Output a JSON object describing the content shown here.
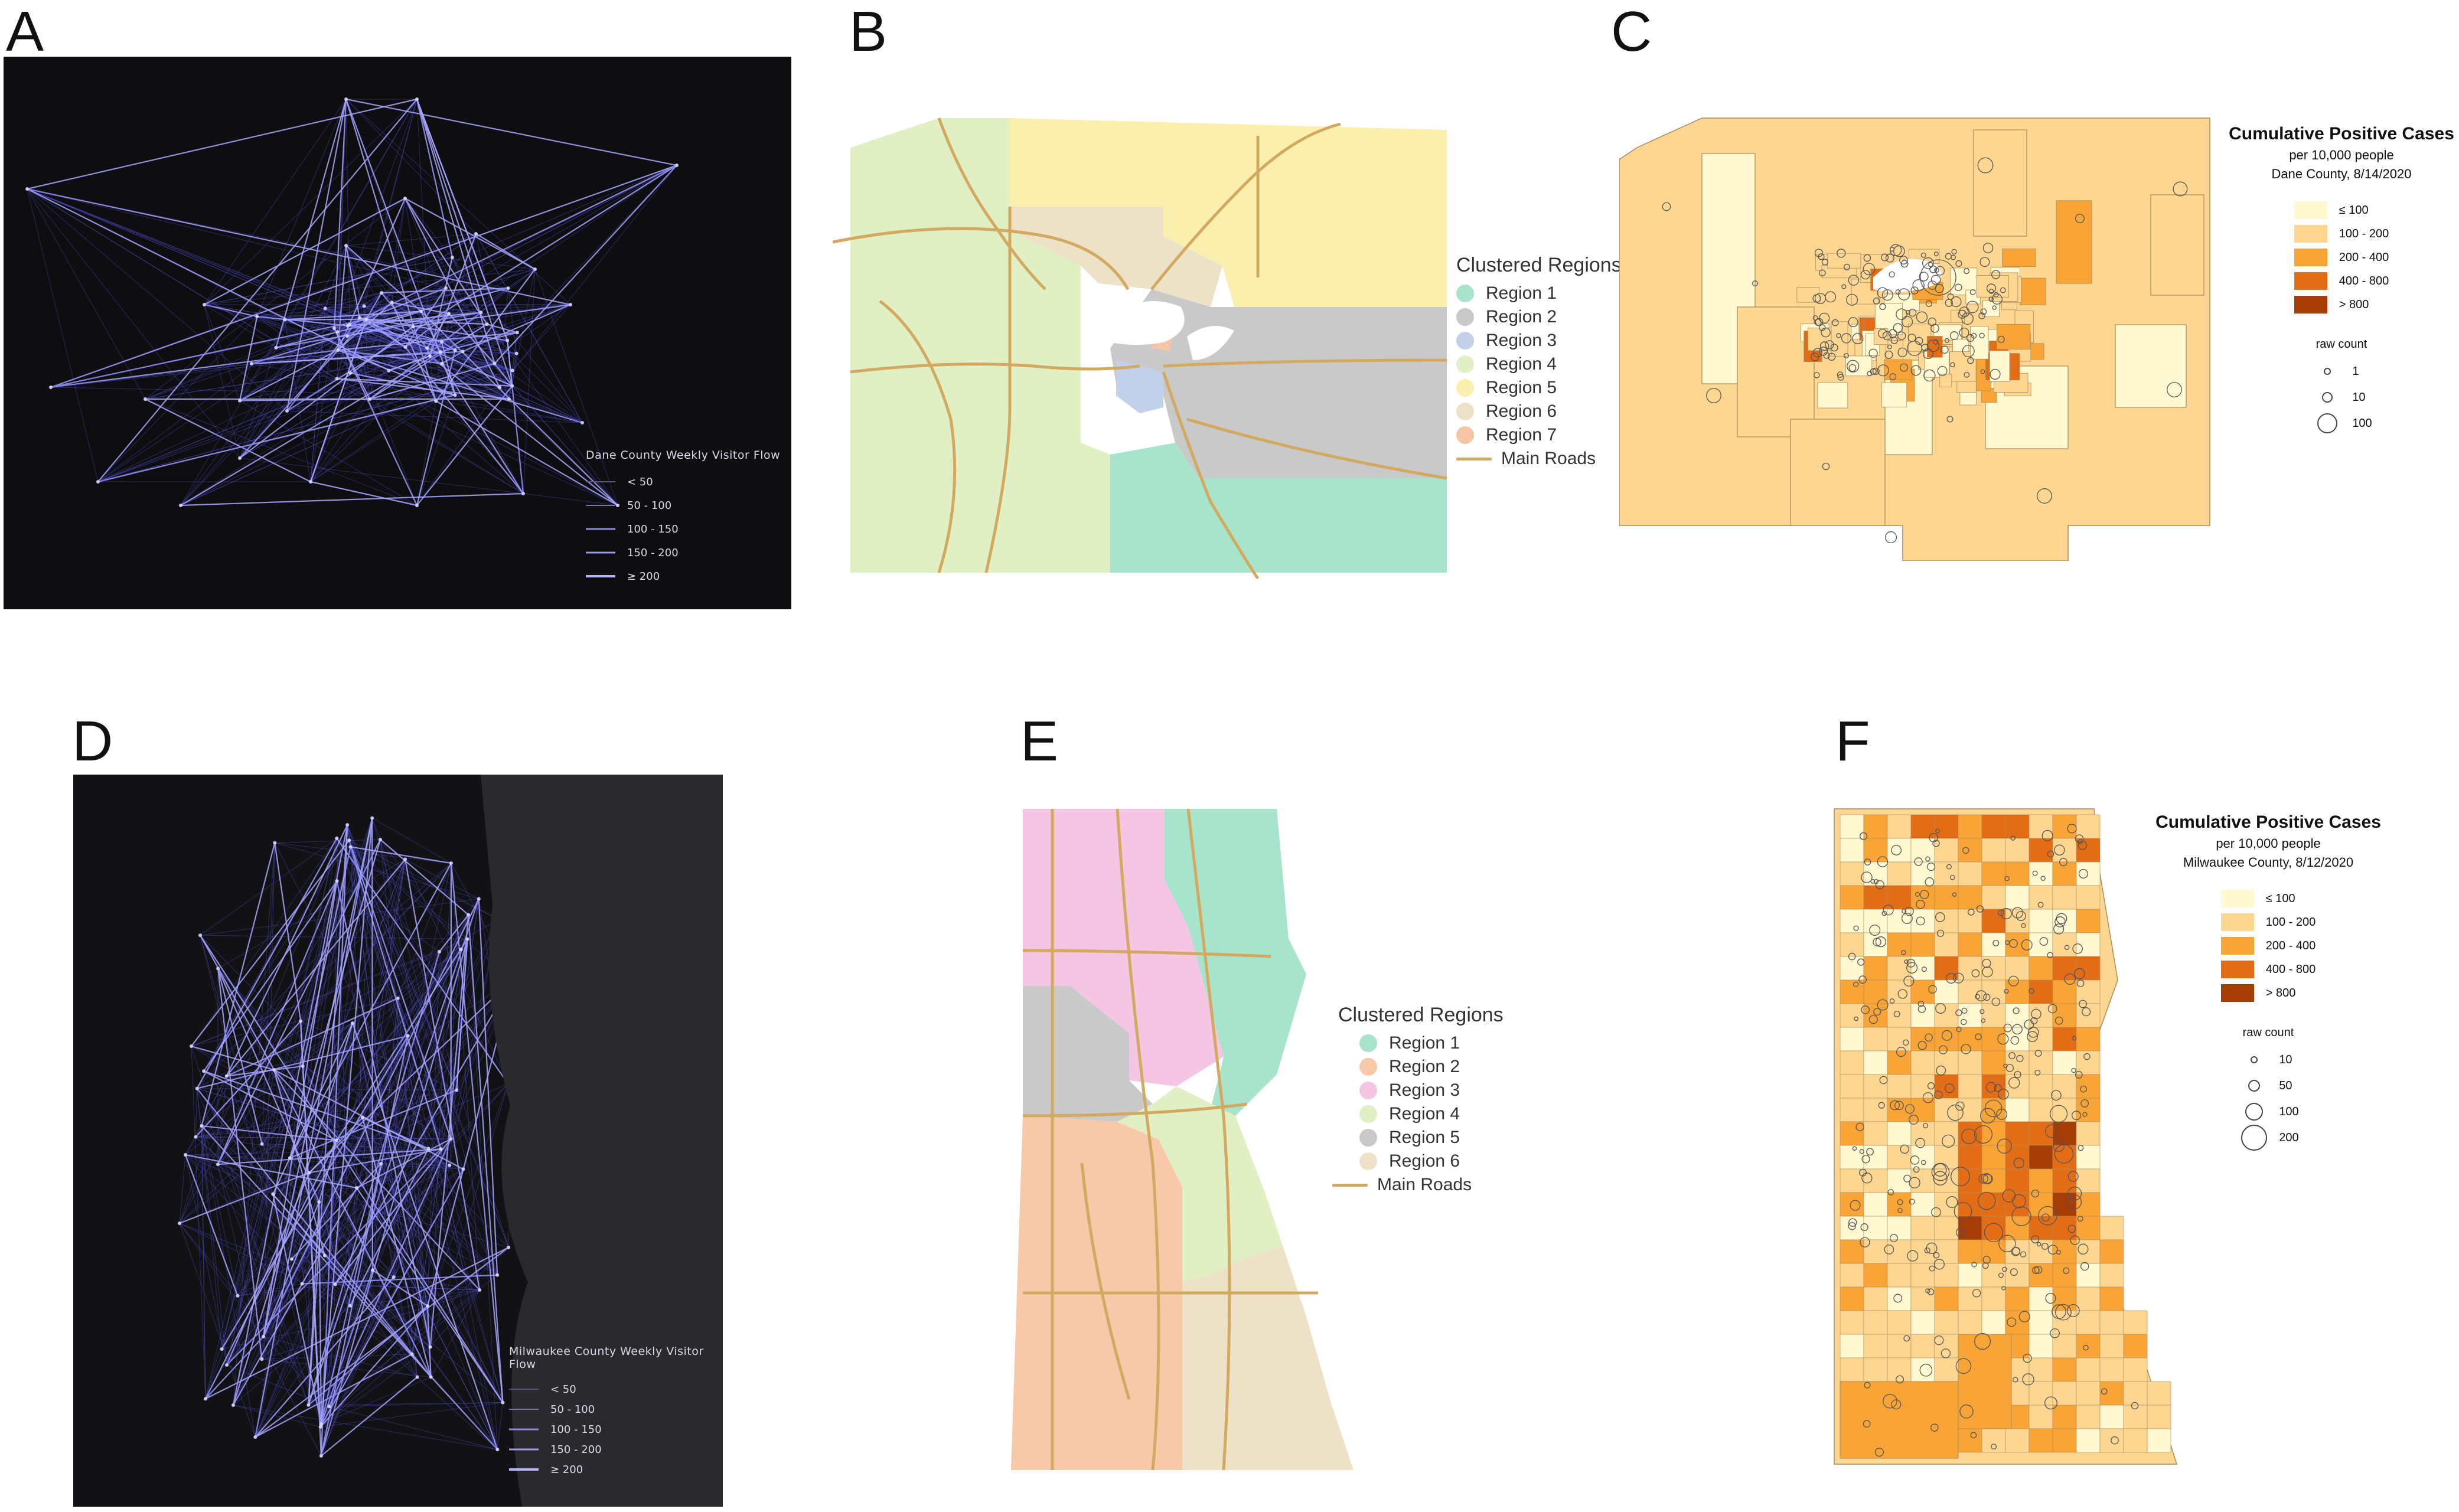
{
  "panels": {
    "a": {
      "letter": "A"
    },
    "b": {
      "letter": "B"
    },
    "c": {
      "letter": "C"
    },
    "d": {
      "letter": "D"
    },
    "e": {
      "letter": "E"
    },
    "f": {
      "letter": "F"
    }
  },
  "dane_flow": {
    "legend_title": "Dane County Weekly Visitor Flow",
    "classes": [
      "< 50",
      "50 - 100",
      "100 - 150",
      "150 - 200",
      "≥ 200"
    ],
    "line_color": "#6a6aff",
    "background": "#0e0e11"
  },
  "milwaukee_flow": {
    "legend_title": "Milwaukee County Weekly Visitor Flow",
    "classes": [
      "< 50",
      "50 - 100",
      "100 - 150",
      "150 - 200",
      "≥ 200"
    ],
    "line_color": "#6a6aff",
    "background": "#121215"
  },
  "dane_regions": {
    "legend_title": "Clustered Regions",
    "regions": [
      {
        "label": "Region 1",
        "color": "#a8e4cc"
      },
      {
        "label": "Region 2",
        "color": "#c9c9c9"
      },
      {
        "label": "Region 3",
        "color": "#c3d0ea"
      },
      {
        "label": "Region 4",
        "color": "#e0f0c4"
      },
      {
        "label": "Region 5",
        "color": "#fbefae"
      },
      {
        "label": "Region 6",
        "color": "#ede1c8"
      },
      {
        "label": "Region 7",
        "color": "#f7c4a6"
      }
    ],
    "roads_label": "Main Roads",
    "road_color": "#d2a95e"
  },
  "milwaukee_regions": {
    "legend_title": "Clustered Regions",
    "regions": [
      {
        "label": "Region 1",
        "color": "#a8e4cc"
      },
      {
        "label": "Region 2",
        "color": "#f8c9a8"
      },
      {
        "label": "Region 3",
        "color": "#f4c6e4"
      },
      {
        "label": "Region 4",
        "color": "#e0f0c4"
      },
      {
        "label": "Region 5",
        "color": "#c9c9c9"
      },
      {
        "label": "Region 6",
        "color": "#ede1c8"
      }
    ],
    "roads_label": "Main Roads",
    "road_color": "#d2a95e"
  },
  "dane_cases": {
    "title": "Cumulative Positive Cases",
    "subtitle1": "per 10,000 people",
    "subtitle2": "Dane County, 8/14/2020",
    "classes": [
      {
        "label": "≤ 100",
        "color": "#fff8d0"
      },
      {
        "label": "100 - 200",
        "color": "#fdd692"
      },
      {
        "label": "200 - 400",
        "color": "#f9a436"
      },
      {
        "label": "400 - 800",
        "color": "#e26d16"
      },
      {
        "label": "> 800",
        "color": "#a63c06"
      }
    ],
    "raw_count_title": "raw count",
    "raw_counts": [
      "1",
      "10",
      "100"
    ]
  },
  "milwaukee_cases": {
    "title": "Cumulative Positive Cases",
    "subtitle1": "per 10,000 people",
    "subtitle2": "Milwaukee County, 8/12/2020",
    "classes": [
      {
        "label": "≤ 100",
        "color": "#fff8d0"
      },
      {
        "label": "100 - 200",
        "color": "#fdd692"
      },
      {
        "label": "200 - 400",
        "color": "#f9a436"
      },
      {
        "label": "400 - 800",
        "color": "#e26d16"
      },
      {
        "label": "> 800",
        "color": "#a63c06"
      }
    ],
    "raw_count_title": "raw count",
    "raw_counts": [
      "10",
      "50",
      "100",
      "200"
    ]
  }
}
